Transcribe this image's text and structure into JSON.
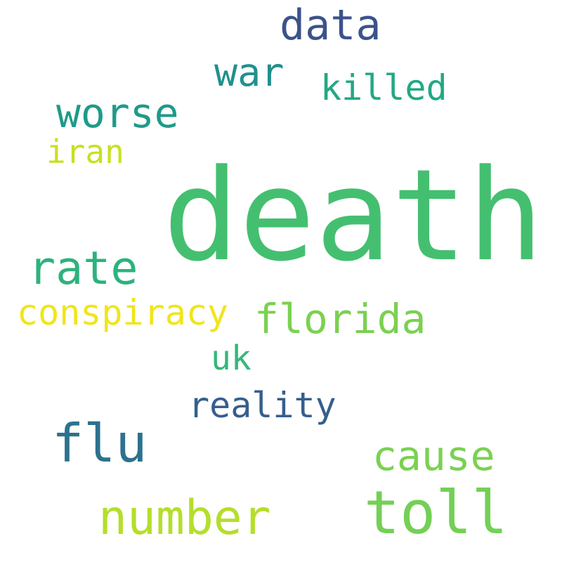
{
  "words": {
    "death": {
      "text": "death",
      "color": "#44bf70"
    },
    "data": {
      "text": "data",
      "color": "#3b528b"
    },
    "war": {
      "text": "war",
      "color": "#21908d"
    },
    "killed": {
      "text": "killed",
      "color": "#22a884"
    },
    "worse": {
      "text": "worse",
      "color": "#1f9a8a"
    },
    "iran": {
      "text": "iran",
      "color": "#c8e020"
    },
    "rate": {
      "text": "rate",
      "color": "#2db27d"
    },
    "conspiracy": {
      "text": "conspiracy",
      "color": "#f0e51b"
    },
    "florida": {
      "text": "florida",
      "color": "#7ad151"
    },
    "uk": {
      "text": "uk",
      "color": "#35b779"
    },
    "reality": {
      "text": "reality",
      "color": "#355f8d"
    },
    "flu": {
      "text": "flu",
      "color": "#2c728e"
    },
    "cause": {
      "text": "cause",
      "color": "#7ad151"
    },
    "number": {
      "text": "number",
      "color": "#b5de2b"
    },
    "toll": {
      "text": "toll",
      "color": "#73d055"
    }
  }
}
